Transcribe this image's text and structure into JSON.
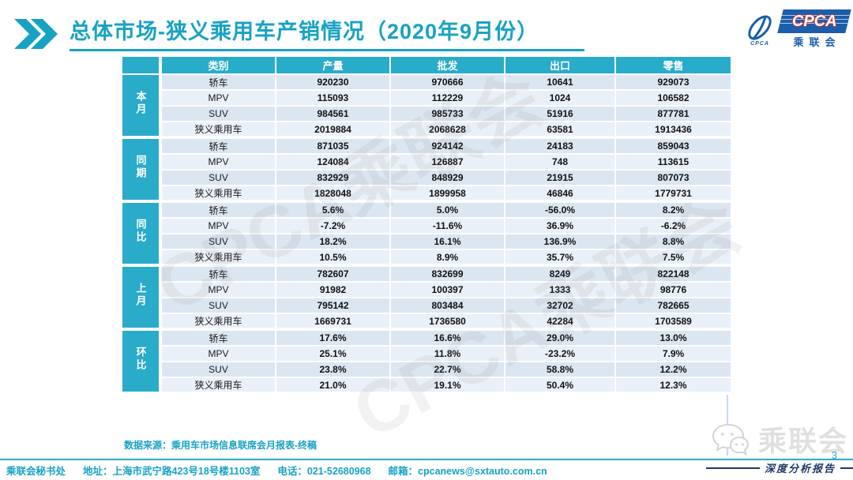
{
  "header": {
    "title": "总体市场-狭义乘用车产销情况（2020年9月份）",
    "logo": {
      "acronym": "CPCA",
      "org_name": "乘联会",
      "icon_caption": "CPCA"
    }
  },
  "table": {
    "columns": [
      "类别",
      "产量",
      "批发",
      "出口",
      "零售"
    ],
    "groups": [
      {
        "label": "本月",
        "rows": [
          {
            "category": "轿车",
            "values": [
              "920230",
              "970666",
              "10641",
              "929073"
            ]
          },
          {
            "category": "MPV",
            "values": [
              "115093",
              "112229",
              "1024",
              "106582"
            ]
          },
          {
            "category": "SUV",
            "values": [
              "984561",
              "985733",
              "51916",
              "877781"
            ]
          },
          {
            "category": "狭义乘用车",
            "values": [
              "2019884",
              "2068628",
              "63581",
              "1913436"
            ]
          }
        ]
      },
      {
        "label": "同期",
        "rows": [
          {
            "category": "轿车",
            "values": [
              "871035",
              "924142",
              "24183",
              "859043"
            ]
          },
          {
            "category": "MPV",
            "values": [
              "124084",
              "126887",
              "748",
              "113615"
            ]
          },
          {
            "category": "SUV",
            "values": [
              "832929",
              "848929",
              "21915",
              "807073"
            ]
          },
          {
            "category": "狭义乘用车",
            "values": [
              "1828048",
              "1899958",
              "46846",
              "1779731"
            ]
          }
        ]
      },
      {
        "label": "同比",
        "rows": [
          {
            "category": "轿车",
            "values": [
              "5.6%",
              "5.0%",
              "-56.0%",
              "8.2%"
            ]
          },
          {
            "category": "MPV",
            "values": [
              "-7.2%",
              "-11.6%",
              "36.9%",
              "-6.2%"
            ]
          },
          {
            "category": "SUV",
            "values": [
              "18.2%",
              "16.1%",
              "136.9%",
              "8.8%"
            ]
          },
          {
            "category": "狭义乘用车",
            "values": [
              "10.5%",
              "8.9%",
              "35.7%",
              "7.5%"
            ]
          }
        ]
      },
      {
        "label": "上月",
        "rows": [
          {
            "category": "轿车",
            "values": [
              "782607",
              "832699",
              "8249",
              "822148"
            ]
          },
          {
            "category": "MPV",
            "values": [
              "91982",
              "100397",
              "1333",
              "98776"
            ]
          },
          {
            "category": "SUV",
            "values": [
              "795142",
              "803484",
              "32702",
              "782665"
            ]
          },
          {
            "category": "狭义乘用车",
            "values": [
              "1669731",
              "1736580",
              "42284",
              "1703589"
            ]
          }
        ]
      },
      {
        "label": "环比",
        "rows": [
          {
            "category": "轿车",
            "values": [
              "17.6%",
              "16.6%",
              "29.0%",
              "13.0%"
            ]
          },
          {
            "category": "MPV",
            "values": [
              "25.1%",
              "11.8%",
              "-23.2%",
              "7.9%"
            ]
          },
          {
            "category": "SUV",
            "values": [
              "23.8%",
              "22.7%",
              "58.8%",
              "12.2%"
            ]
          },
          {
            "category": "狭义乘用车",
            "values": [
              "21.0%",
              "19.1%",
              "50.4%",
              "12.3%"
            ]
          }
        ]
      }
    ]
  },
  "source_note": "数据来源：乘用车市场信息联席会月报表-终稿",
  "footer": {
    "org": "乘联会秘书处",
    "address": "地址：上海市武宁路423号18号楼1103室",
    "phone": "电话：021-52680968",
    "email": "邮箱：cpcanews@sxtauto.com.cn"
  },
  "page_number": "3",
  "report_label": "深度分析报告",
  "watermarks": {
    "diagonal": "CPCA乘联会",
    "logo_text": "乘联会"
  },
  "colors": {
    "accent_teal": "#17a2c4",
    "header_teal": "#29abca",
    "navy": "#1f3864",
    "row_odd": "#dce6f1",
    "row_even": "#eaf0f8"
  }
}
